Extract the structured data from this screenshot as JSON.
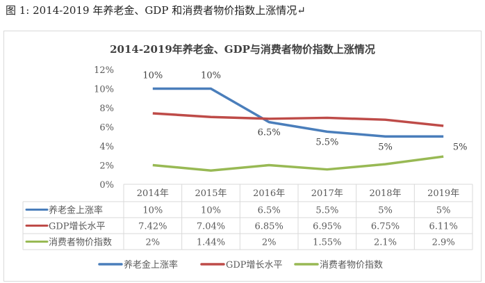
{
  "caption": "图 1:  2014-2019 年养老金、GDP 和消费者物价指数上涨情况↵",
  "chart_data": {
    "type": "line",
    "title": "2014-2019年养老金、GDP与消费者物价指数上涨情况",
    "categories": [
      "2014年",
      "2015年",
      "2016年",
      "2017年",
      "2018年",
      "2019年"
    ],
    "ylim": [
      0,
      12
    ],
    "yticks": [
      "0%",
      "2%",
      "4%",
      "6%",
      "8%",
      "10%",
      "12%"
    ],
    "grid": false,
    "legend": "bottom",
    "data_table": true,
    "series": [
      {
        "name": "养老金上涨率",
        "color": "#4a7ebb",
        "values": [
          10,
          10,
          6.5,
          5.5,
          5,
          5
        ],
        "labels": [
          "10%",
          "10%",
          "6.5%",
          "5.5%",
          "5%",
          "5%"
        ],
        "data_labels": [
          "10%",
          "10%",
          "6.5%",
          "5.5%",
          "5%",
          "5%"
        ]
      },
      {
        "name": "GDP增长水平",
        "color": "#be4b48",
        "values": [
          7.42,
          7.04,
          6.85,
          6.95,
          6.75,
          6.11
        ],
        "labels": [
          "7.42%",
          "7.04%",
          "6.85%",
          "6.95%",
          "6.75%",
          "6.11%"
        ]
      },
      {
        "name": "消费者物价指数",
        "color": "#98b954",
        "values": [
          2,
          1.44,
          2,
          1.55,
          2.1,
          2.9
        ],
        "labels": [
          "2%",
          "1.44%",
          "2%",
          "1.55%",
          "2.1%",
          "2.9%"
        ]
      }
    ]
  }
}
